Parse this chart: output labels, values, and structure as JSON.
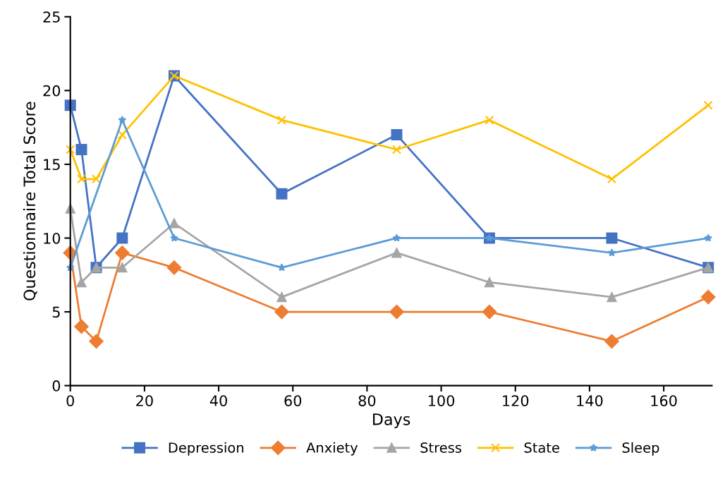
{
  "chart_data": {
    "type": "line",
    "xlabel": "Days",
    "ylabel": "Questionnaire Total Score",
    "x": [
      0,
      3,
      7,
      14,
      28,
      57,
      88,
      113,
      146,
      172
    ],
    "series": [
      {
        "name": "Depression",
        "color": "#4472c4",
        "marker": "square",
        "values": [
          19,
          16,
          8,
          10,
          21,
          13,
          17,
          10,
          10,
          8
        ]
      },
      {
        "name": "Anxiety",
        "color": "#ed7d31",
        "marker": "diamond",
        "values": [
          9,
          4,
          3,
          9,
          8,
          5,
          5,
          5,
          3,
          6
        ]
      },
      {
        "name": "Stress",
        "color": "#a5a5a5",
        "marker": "triangle",
        "values": [
          12,
          7,
          8,
          8,
          11,
          6,
          9,
          7,
          6,
          8
        ]
      },
      {
        "name": "State",
        "color": "#ffc000",
        "marker": "cross",
        "values": [
          16,
          14,
          14,
          17,
          21,
          18,
          16,
          18,
          14,
          19
        ]
      },
      {
        "name": "Sleep",
        "color": "#5b9bd5",
        "marker": "star",
        "x": [
          0,
          14,
          28,
          57,
          88,
          113,
          146,
          172
        ],
        "values": [
          8,
          18,
          10,
          8,
          10,
          10,
          9,
          10
        ]
      }
    ],
    "xlim": [
      0,
      173
    ],
    "xticks": [
      0,
      20,
      40,
      60,
      80,
      100,
      120,
      140,
      160
    ],
    "ylim": [
      0,
      25
    ],
    "yticks": [
      0,
      5,
      10,
      15,
      20,
      25
    ],
    "grid": false,
    "legend": "bottom",
    "line_style": "solid"
  }
}
